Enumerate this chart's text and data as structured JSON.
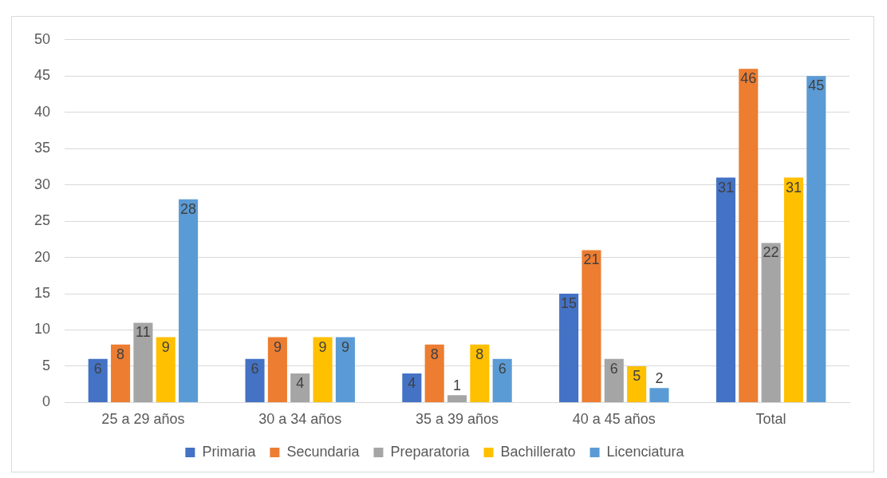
{
  "chart_data": {
    "type": "bar",
    "categories": [
      "25 a 29 años",
      "30 a 34 años",
      "35 a 39 años",
      "40 a 45 años",
      "Total"
    ],
    "series": [
      {
        "name": "Primaria",
        "color": "#4472c4",
        "values": [
          6,
          6,
          4,
          15,
          31
        ]
      },
      {
        "name": "Secundaria",
        "color": "#ed7d31",
        "values": [
          8,
          9,
          8,
          21,
          46
        ]
      },
      {
        "name": "Preparatoria",
        "color": "#a5a5a5",
        "values": [
          11,
          4,
          1,
          6,
          22
        ]
      },
      {
        "name": "Bachillerato",
        "color": "#ffc000",
        "values": [
          9,
          9,
          8,
          5,
          31
        ]
      },
      {
        "name": "Licenciatura",
        "color": "#5b9bd5",
        "values": [
          28,
          9,
          6,
          2,
          45
        ]
      }
    ],
    "ylim": [
      0,
      50
    ],
    "yticks": [
      0,
      5,
      10,
      15,
      20,
      25,
      30,
      35,
      40,
      45,
      50
    ],
    "grid": "y",
    "legend": "bottom",
    "data_labels": true
  }
}
